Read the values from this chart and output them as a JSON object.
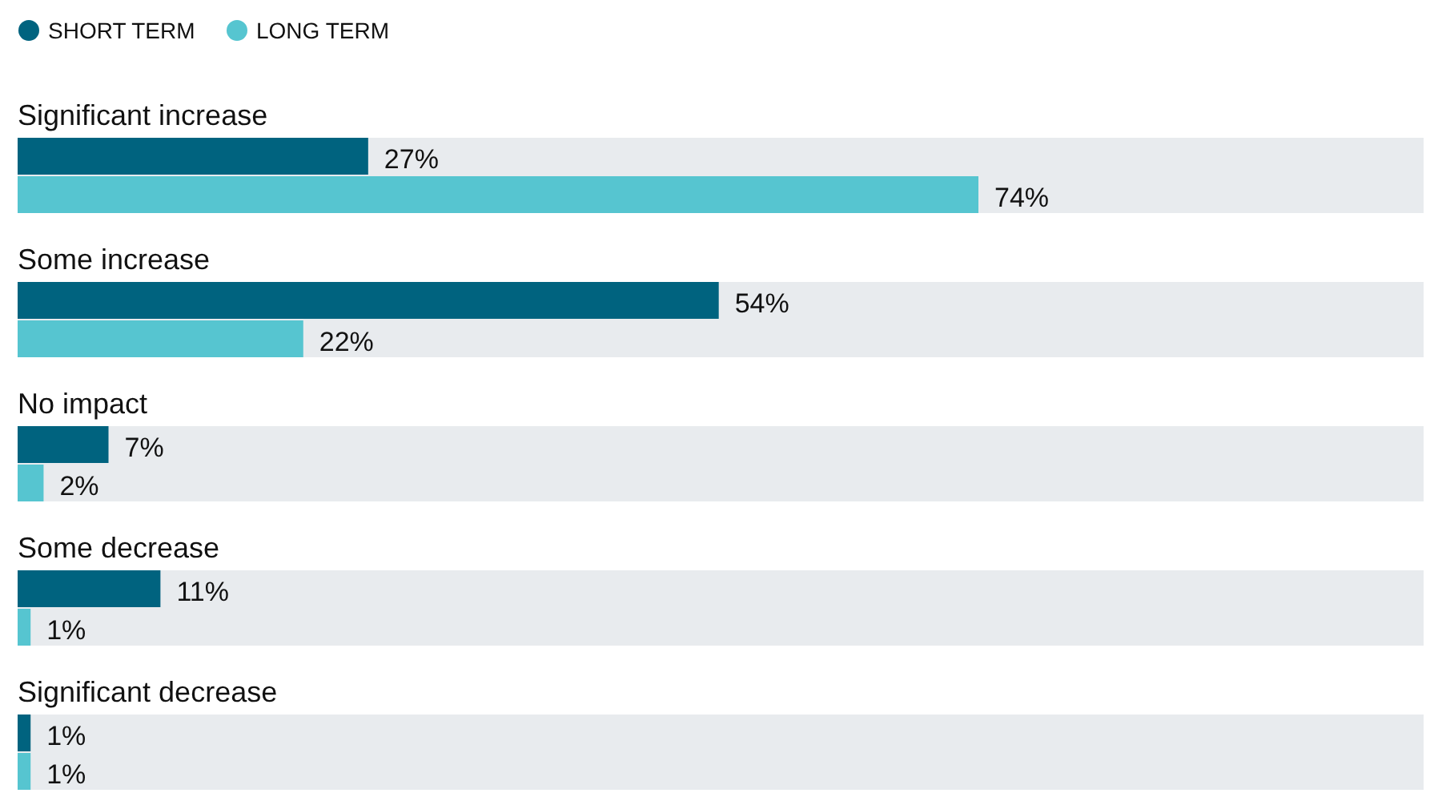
{
  "chart_data": {
    "type": "bar",
    "orientation": "horizontal",
    "categories": [
      "Significant increase",
      "Some increase",
      "No impact",
      "Some decrease",
      "Significant decrease"
    ],
    "series": [
      {
        "name": "SHORT TERM",
        "color": "#00637f",
        "values": [
          27,
          54,
          7,
          11,
          1
        ],
        "value_labels": [
          "27%",
          "54%",
          "7%",
          "11%",
          "1%"
        ]
      },
      {
        "name": "LONG TERM",
        "color": "#56c5d0",
        "values": [
          74,
          22,
          2,
          1,
          1
        ],
        "value_labels": [
          "74%",
          "22%",
          "2%",
          "1%",
          "1%"
        ]
      }
    ],
    "legend": "top left",
    "bands": [
      {
        "axis": "y",
        "from": "Significant increase",
        "to": "Significant increase",
        "color": "#e8ebee"
      },
      {
        "axis": "y",
        "from": "Some increase",
        "to": "Some increase",
        "color": "#e8ebee"
      },
      {
        "axis": "y",
        "from": "No impact",
        "to": "No impact",
        "color": "#e8ebee"
      },
      {
        "axis": "y",
        "from": "Some decrease",
        "to": "Some decrease",
        "color": "#e8ebee"
      },
      {
        "axis": "y",
        "from": "Significant decrease",
        "to": "Significant decrease",
        "color": "#e8ebee"
      }
    ]
  }
}
